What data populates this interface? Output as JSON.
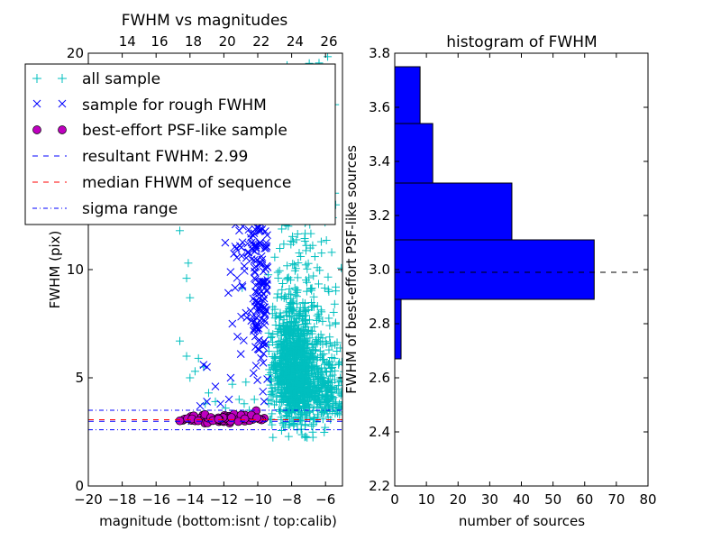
{
  "figure": {
    "background": "#ffffff"
  },
  "chart_data": [
    {
      "type": "scatter",
      "title": "FWHM vs magnitudes",
      "xlabel": "magnitude (bottom:isnt / top:calib)",
      "ylabel": "FWHM (pix)",
      "xlim": [
        -20,
        -5
      ],
      "ylim": [
        0,
        20
      ],
      "x_ticks": [
        -20,
        -18,
        -16,
        -14,
        -12,
        -10,
        -8,
        -6
      ],
      "x_tick_labels": [
        "−20",
        "−18",
        "−16",
        "−14",
        "−12",
        "−10",
        "−8",
        "−6"
      ],
      "y_ticks": [
        0,
        5,
        10,
        20
      ],
      "y_tick_labels": [
        "0",
        "5",
        "10",
        "20"
      ],
      "top_axis": {
        "tick_labels": [
          "14",
          "16",
          "18",
          "20",
          "22",
          "24",
          "26"
        ],
        "tick_positions_bottom_units": [
          -17.7,
          -15.8,
          -13.8,
          -11.8,
          -9.8,
          -7.8,
          -5.8
        ]
      },
      "series": [
        {
          "name": "all sample",
          "marker": "plus",
          "color": "#00bfbf",
          "clusters": [
            {
              "x_center": -7.9,
              "x_spread": 0.6,
              "y_center": 4.8,
              "y_spread": 1.6,
              "count": 900
            },
            {
              "x_center": -7.4,
              "x_spread": 1.2,
              "y_center": 5.5,
              "y_spread": 3.5,
              "count": 350
            },
            {
              "x_center": -7.6,
              "x_spread": 0.9,
              "y_center": 13.0,
              "y_spread": 3.5,
              "count": 80
            },
            {
              "x_center": -6.0,
              "x_spread": 0.7,
              "y_center": 4.0,
              "y_spread": 1.0,
              "count": 220
            }
          ],
          "points": [
            [
              -14.6,
              6.7
            ],
            [
              -14.2,
              6.0
            ],
            [
              -14.0,
              5.0
            ],
            [
              -14.1,
              10.3
            ],
            [
              -14.2,
              9.6
            ],
            [
              -14.0,
              8.7
            ],
            [
              -13.7,
              5.3
            ],
            [
              -13.5,
              5.9
            ],
            [
              -13.1,
              3.8
            ],
            [
              -12.9,
              4.3
            ],
            [
              -11.9,
              3.6
            ],
            [
              -11.5,
              4.7
            ],
            [
              -11.1,
              4.0
            ],
            [
              -10.8,
              3.8
            ],
            [
              -10.7,
              4.8
            ],
            [
              -14.6,
              11.8
            ],
            [
              -13.2,
              5.5
            ],
            [
              -12.5,
              3.9
            ],
            [
              -10.5,
              3.5
            ],
            [
              -10.2,
              4.0
            ]
          ]
        },
        {
          "name": "sample for rough FWHM",
          "marker": "x",
          "color": "#0000ff",
          "clusters": [
            {
              "x_center": -9.9,
              "x_spread": 0.35,
              "y_center": 8.0,
              "y_spread": 3.0,
              "count": 160
            },
            {
              "x_center": -10.9,
              "x_spread": 0.4,
              "y_center": 10.5,
              "y_spread": 1.8,
              "count": 30
            }
          ],
          "points": [
            [
              -13.2,
              5.6
            ],
            [
              -13.0,
              5.5
            ],
            [
              -12.5,
              4.6
            ],
            [
              -11.7,
              4.0
            ],
            [
              -11.5,
              7.5
            ],
            [
              -11.2,
              6.9
            ],
            [
              -13.9,
              3.0
            ],
            [
              -13.4,
              3.7
            ],
            [
              -13.0,
              3.9
            ],
            [
              -12.2,
              3.8
            ],
            [
              -11.6,
              5.0
            ],
            [
              -11.0,
              6.1
            ],
            [
              -10.9,
              9.2
            ],
            [
              -10.7,
              8.0
            ],
            [
              -10.6,
              11.2
            ]
          ]
        },
        {
          "name": "best-effort PSF-like sample",
          "marker": "circle",
          "color": "#bf00bf",
          "clusters": [
            {
              "x_center": -11.9,
              "x_spread": 1.5,
              "y_center": 3.05,
              "y_spread": 0.13,
              "count": 70
            }
          ],
          "points": []
        },
        {
          "name": "resultant FWHM: 2.99",
          "line": "dashed",
          "color": "#0000ff",
          "y": 2.99
        },
        {
          "name": "median FHWM of sequence",
          "line": "dashed",
          "color": "#ff0000",
          "y": 3.06
        },
        {
          "name": "sigma range",
          "line": "dashdot",
          "color": "#0000ff",
          "y_values": [
            2.6,
            3.5
          ]
        }
      ],
      "legend": {
        "placement": "top-left",
        "entries": [
          "all sample",
          "sample for rough FWHM",
          "best-effort PSF-like sample",
          "resultant FWHM: 2.99",
          "median FHWM of sequence",
          "sigma range"
        ]
      }
    },
    {
      "type": "bar",
      "orientation": "horizontal",
      "title": "histogram of FWHM",
      "xlabel": "number of sources",
      "ylabel": "FWHM of best-effort PSF-like sources",
      "xlim": [
        0,
        80
      ],
      "ylim": [
        2.2,
        3.8
      ],
      "x_ticks": [
        0,
        10,
        20,
        30,
        40,
        50,
        60,
        70,
        80
      ],
      "x_tick_labels": [
        "0",
        "10",
        "20",
        "30",
        "40",
        "50",
        "60",
        "70",
        "80"
      ],
      "y_ticks": [
        2.2,
        2.4,
        2.6,
        2.8,
        3.0,
        3.2,
        3.4,
        3.6,
        3.8
      ],
      "y_tick_labels": [
        "2.2",
        "2.4",
        "2.6",
        "2.8",
        "3.0",
        "3.2",
        "3.4",
        "3.6",
        "3.8"
      ],
      "bars": [
        {
          "y0": 2.67,
          "y1": 2.89,
          "count": 2
        },
        {
          "y0": 2.89,
          "y1": 3.11,
          "count": 63
        },
        {
          "y0": 3.11,
          "y1": 3.32,
          "count": 37
        },
        {
          "y0": 3.32,
          "y1": 3.54,
          "count": 12
        },
        {
          "y0": 3.54,
          "y1": 3.75,
          "count": 8
        }
      ],
      "bar_color": "#0000ff",
      "reference_line": {
        "y": 2.99,
        "style": "dashed",
        "color": "#000000",
        "x_range": [
          0,
          77
        ]
      }
    }
  ]
}
